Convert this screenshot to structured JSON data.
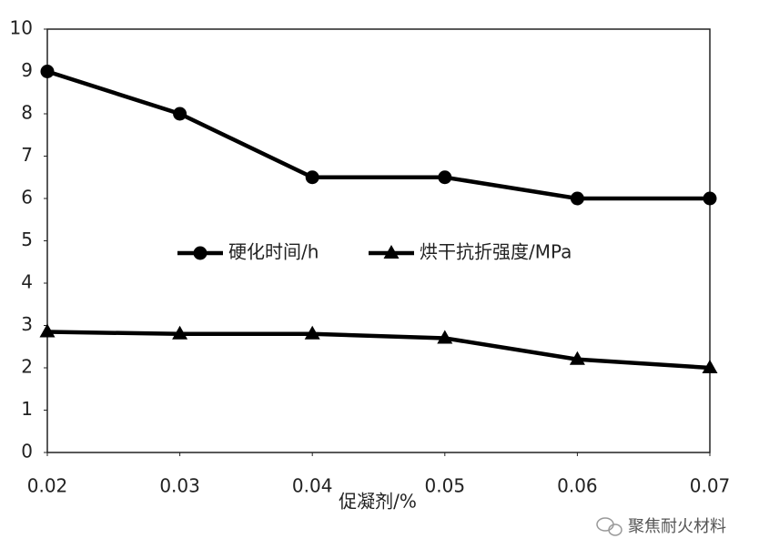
{
  "chart_data": {
    "type": "line",
    "x_label": "促凝剂/%",
    "x": [
      0.02,
      0.03,
      0.04,
      0.05,
      0.06,
      0.07
    ],
    "xlim": [
      0.02,
      0.07
    ],
    "xticks": [
      0.02,
      0.03,
      0.04,
      0.05,
      0.06,
      0.07
    ],
    "ylim": [
      0,
      10
    ],
    "yticks": [
      0,
      1,
      2,
      3,
      4,
      5,
      6,
      7,
      8,
      9,
      10
    ],
    "grid": false,
    "legend": "center",
    "series": [
      {
        "name": "硬化时间/h",
        "color": "#000000",
        "marker": "circle",
        "values": [
          9,
          8,
          6.5,
          6.5,
          6,
          6
        ]
      },
      {
        "name": "烘干抗折强度/MPa",
        "color": "#000000",
        "marker": "triangle",
        "values": [
          2.85,
          2.8,
          2.8,
          2.7,
          2.2,
          2.0
        ]
      }
    ]
  },
  "watermark": "聚焦耐火材料"
}
